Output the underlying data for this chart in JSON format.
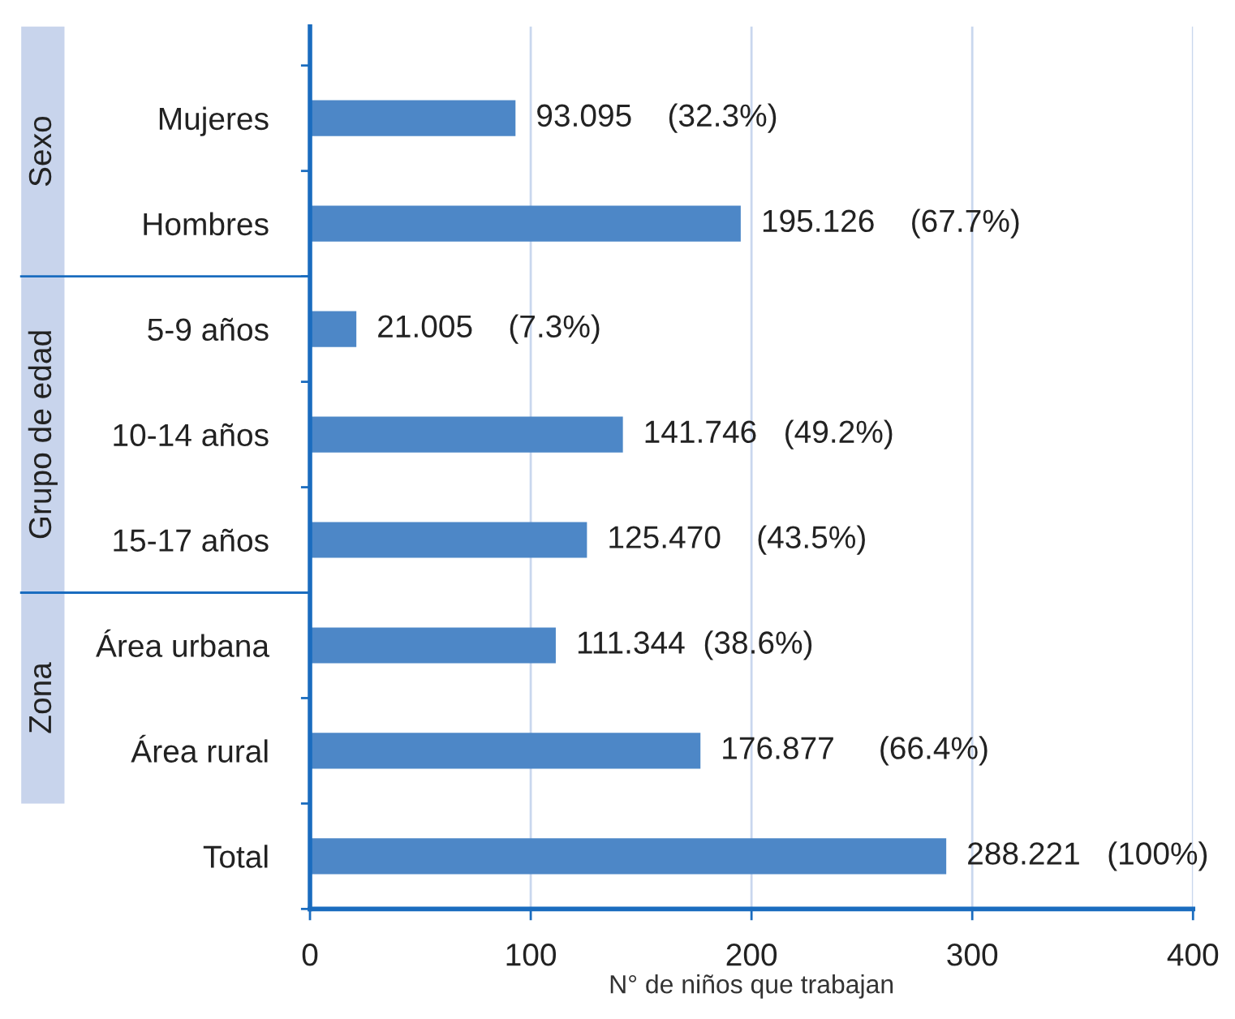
{
  "chart_data": {
    "type": "bar",
    "orientation": "horizontal",
    "categories": [
      "Mujeres",
      "Hombres",
      "5-9 años",
      "10-14 años",
      "15-17 años",
      "Área urbana",
      "Área rural",
      "Total"
    ],
    "values": [
      93.095,
      195.126,
      21.005,
      141.746,
      125.47,
      111.344,
      176.877,
      288.221
    ],
    "color": "#4d87c7",
    "value_labels": [
      "93.095    (32.3%)",
      "195.126    (67.7%)",
      "21.005    (7.3%)",
      "141.746   (49.2%)",
      "125.470    (43.5%)",
      "111.344  (38.6%)",
      "176.877     (66.4%)",
      "288.221   (100%)"
    ],
    "xlabel": "N° de niños que trabajan",
    "xlim": [
      0,
      400
    ],
    "xticks": [
      0,
      100,
      200,
      300,
      400
    ],
    "grid": "x",
    "annotations": [
      "Sexo",
      "Grupo de edad",
      "Zona"
    ]
  }
}
